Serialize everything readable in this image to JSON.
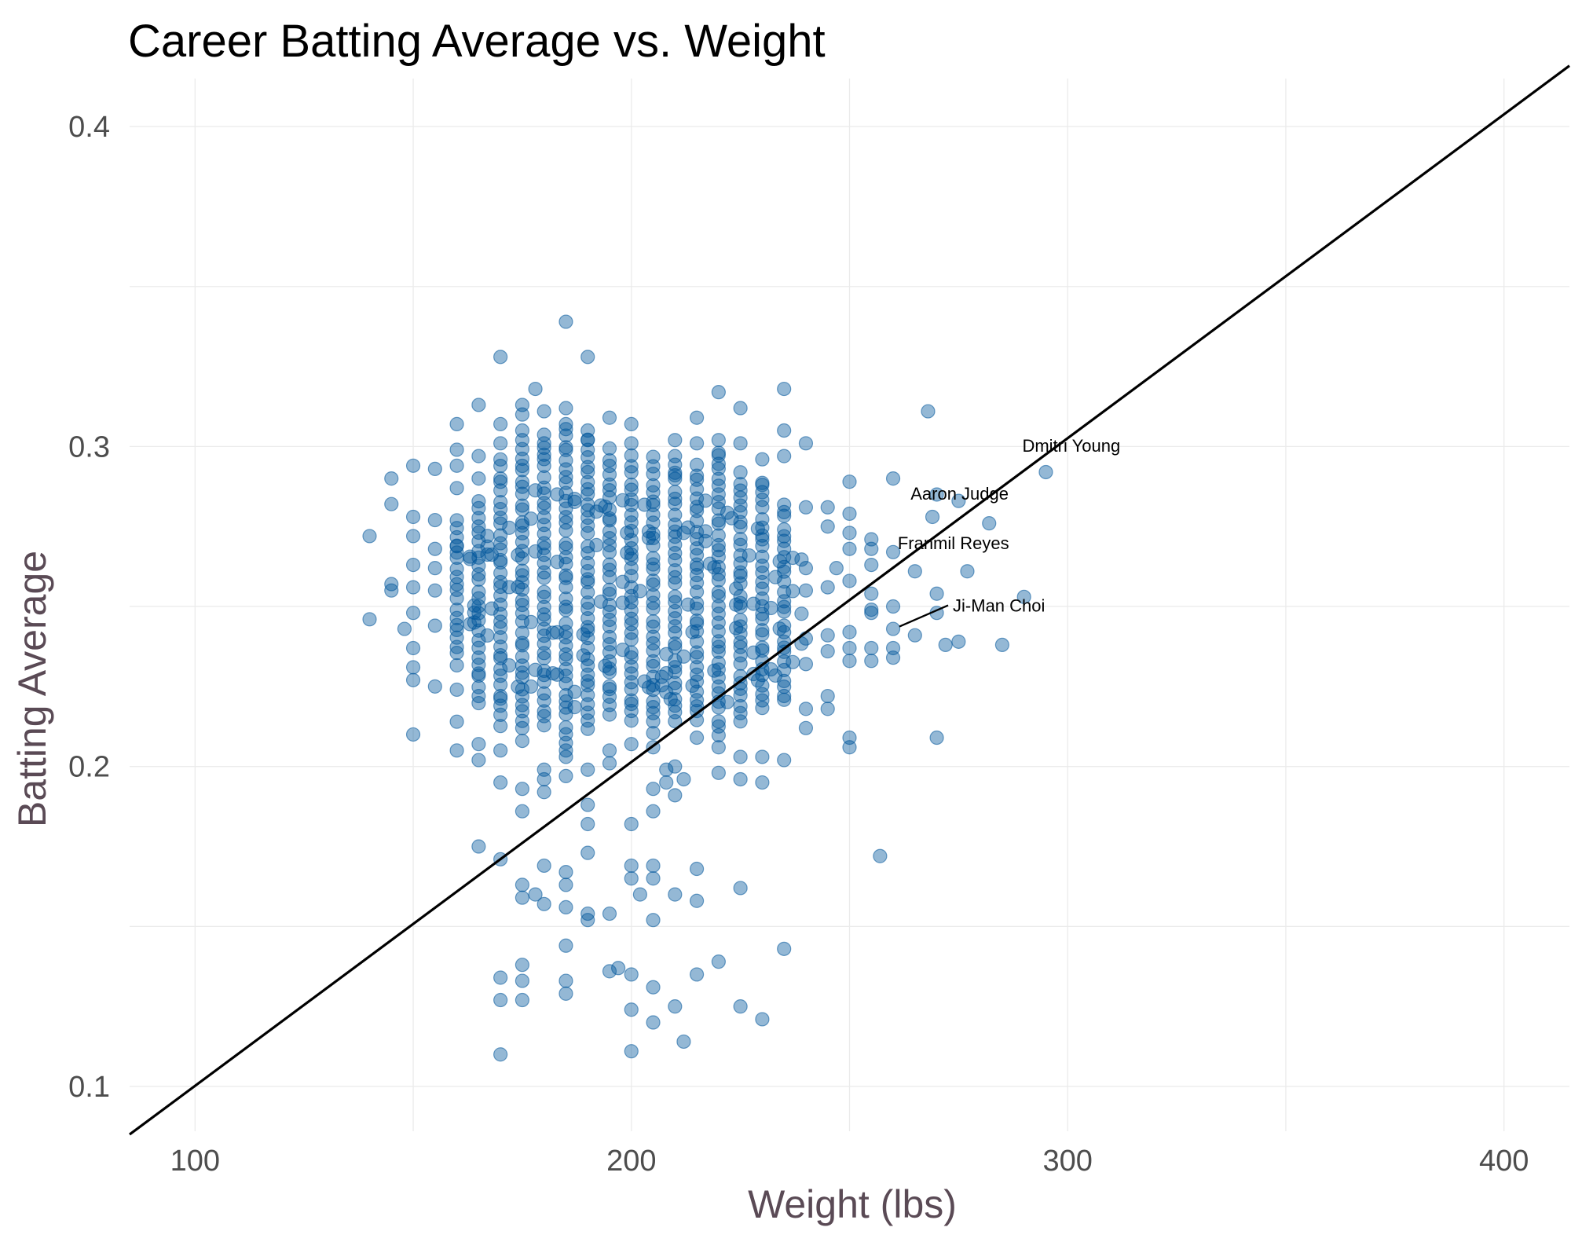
{
  "chart_data": {
    "type": "scatter",
    "title": "Career Batting Average vs. Weight",
    "xlabel": "Weight (lbs)",
    "ylabel": "Batting Average",
    "xlim": [
      85,
      415
    ],
    "ylim": [
      0.086,
      0.415
    ],
    "xticks": [
      100,
      200,
      300,
      400
    ],
    "yticks": [
      0.1,
      0.2,
      0.3,
      0.4
    ],
    "ytick_labels": [
      "0.1",
      "0.2",
      "0.3",
      "0.4"
    ],
    "grid": true,
    "colors": {
      "points": "#00569a",
      "line": "#000000"
    },
    "reference_line": [
      [
        85,
        0.085
      ],
      [
        415,
        0.419
      ]
    ],
    "points": [
      [
        140,
        0.272
      ],
      [
        140,
        0.246
      ],
      [
        145,
        0.29
      ],
      [
        145,
        0.282
      ],
      [
        145,
        0.257
      ],
      [
        145,
        0.255
      ],
      [
        148,
        0.243
      ],
      [
        150,
        0.294
      ],
      [
        150,
        0.278
      ],
      [
        150,
        0.272
      ],
      [
        150,
        0.263
      ],
      [
        150,
        0.256
      ],
      [
        150,
        0.248
      ],
      [
        150,
        0.237
      ],
      [
        150,
        0.231
      ],
      [
        150,
        0.227
      ],
      [
        150,
        0.21
      ],
      [
        155,
        0.293
      ],
      [
        155,
        0.277
      ],
      [
        155,
        0.268
      ],
      [
        155,
        0.262
      ],
      [
        155,
        0.255
      ],
      [
        155,
        0.244
      ],
      [
        155,
        0.225
      ],
      [
        160,
        0.307
      ],
      [
        160,
        0.299
      ],
      [
        160,
        0.294
      ],
      [
        160,
        0.287
      ],
      [
        160,
        0.269
      ],
      [
        160,
        0.224
      ],
      [
        160,
        0.214
      ],
      [
        160,
        0.205
      ],
      [
        165,
        0.313
      ],
      [
        165,
        0.297
      ],
      [
        165,
        0.29
      ],
      [
        165,
        0.207
      ],
      [
        165,
        0.202
      ],
      [
        165,
        0.175
      ],
      [
        170,
        0.328
      ],
      [
        170,
        0.307
      ],
      [
        170,
        0.301
      ],
      [
        170,
        0.205
      ],
      [
        170,
        0.195
      ],
      [
        170,
        0.171
      ],
      [
        170,
        0.134
      ],
      [
        170,
        0.127
      ],
      [
        170,
        0.11
      ],
      [
        175,
        0.313
      ],
      [
        175,
        0.31
      ],
      [
        175,
        0.305
      ],
      [
        175,
        0.208
      ],
      [
        175,
        0.193
      ],
      [
        175,
        0.186
      ],
      [
        175,
        0.163
      ],
      [
        175,
        0.159
      ],
      [
        175,
        0.138
      ],
      [
        175,
        0.133
      ],
      [
        175,
        0.127
      ],
      [
        178,
        0.318
      ],
      [
        178,
        0.16
      ],
      [
        180,
        0.311
      ],
      [
        180,
        0.301
      ],
      [
        180,
        0.199
      ],
      [
        180,
        0.196
      ],
      [
        180,
        0.192
      ],
      [
        180,
        0.169
      ],
      [
        180,
        0.157
      ],
      [
        185,
        0.339
      ],
      [
        185,
        0.312
      ],
      [
        185,
        0.307
      ],
      [
        185,
        0.205
      ],
      [
        185,
        0.203
      ],
      [
        185,
        0.197
      ],
      [
        185,
        0.167
      ],
      [
        185,
        0.163
      ],
      [
        185,
        0.156
      ],
      [
        185,
        0.144
      ],
      [
        185,
        0.133
      ],
      [
        185,
        0.129
      ],
      [
        190,
        0.328
      ],
      [
        190,
        0.305
      ],
      [
        190,
        0.302
      ],
      [
        190,
        0.199
      ],
      [
        190,
        0.188
      ],
      [
        190,
        0.182
      ],
      [
        190,
        0.173
      ],
      [
        190,
        0.154
      ],
      [
        190,
        0.152
      ],
      [
        195,
        0.309
      ],
      [
        195,
        0.205
      ],
      [
        195,
        0.201
      ],
      [
        195,
        0.154
      ],
      [
        195,
        0.136
      ],
      [
        197,
        0.137
      ],
      [
        200,
        0.307
      ],
      [
        200,
        0.301
      ],
      [
        200,
        0.207
      ],
      [
        200,
        0.182
      ],
      [
        200,
        0.169
      ],
      [
        200,
        0.165
      ],
      [
        200,
        0.135
      ],
      [
        200,
        0.124
      ],
      [
        200,
        0.111
      ],
      [
        202,
        0.16
      ],
      [
        205,
        0.206
      ],
      [
        205,
        0.193
      ],
      [
        205,
        0.186
      ],
      [
        205,
        0.169
      ],
      [
        205,
        0.165
      ],
      [
        205,
        0.152
      ],
      [
        205,
        0.131
      ],
      [
        205,
        0.12
      ],
      [
        208,
        0.195
      ],
      [
        208,
        0.199
      ],
      [
        210,
        0.302
      ],
      [
        210,
        0.291
      ],
      [
        210,
        0.2
      ],
      [
        210,
        0.191
      ],
      [
        210,
        0.16
      ],
      [
        210,
        0.125
      ],
      [
        212,
        0.196
      ],
      [
        212,
        0.114
      ],
      [
        215,
        0.309
      ],
      [
        215,
        0.301
      ],
      [
        215,
        0.209
      ],
      [
        215,
        0.168
      ],
      [
        215,
        0.158
      ],
      [
        215,
        0.135
      ],
      [
        220,
        0.317
      ],
      [
        220,
        0.302
      ],
      [
        220,
        0.298
      ],
      [
        220,
        0.206
      ],
      [
        220,
        0.198
      ],
      [
        220,
        0.139
      ],
      [
        225,
        0.312
      ],
      [
        225,
        0.301
      ],
      [
        225,
        0.203
      ],
      [
        225,
        0.196
      ],
      [
        225,
        0.162
      ],
      [
        225,
        0.125
      ],
      [
        230,
        0.296
      ],
      [
        230,
        0.288
      ],
      [
        230,
        0.203
      ],
      [
        230,
        0.195
      ],
      [
        230,
        0.121
      ],
      [
        235,
        0.318
      ],
      [
        235,
        0.305
      ],
      [
        235,
        0.297
      ],
      [
        235,
        0.202
      ],
      [
        235,
        0.143
      ],
      [
        240,
        0.301
      ],
      [
        240,
        0.281
      ],
      [
        240,
        0.262
      ],
      [
        240,
        0.255
      ],
      [
        240,
        0.24
      ],
      [
        240,
        0.232
      ],
      [
        240,
        0.218
      ],
      [
        240,
        0.212
      ],
      [
        245,
        0.281
      ],
      [
        245,
        0.275
      ],
      [
        245,
        0.256
      ],
      [
        245,
        0.241
      ],
      [
        245,
        0.236
      ],
      [
        245,
        0.222
      ],
      [
        245,
        0.218
      ],
      [
        247,
        0.262
      ],
      [
        250,
        0.289
      ],
      [
        250,
        0.279
      ],
      [
        250,
        0.273
      ],
      [
        250,
        0.268
      ],
      [
        250,
        0.258
      ],
      [
        250,
        0.242
      ],
      [
        250,
        0.237
      ],
      [
        250,
        0.233
      ],
      [
        250,
        0.209
      ],
      [
        250,
        0.206
      ],
      [
        255,
        0.271
      ],
      [
        255,
        0.268
      ],
      [
        255,
        0.263
      ],
      [
        255,
        0.254
      ],
      [
        255,
        0.249
      ],
      [
        255,
        0.248
      ],
      [
        255,
        0.237
      ],
      [
        255,
        0.233
      ],
      [
        257,
        0.172
      ],
      [
        260,
        0.29
      ],
      [
        260,
        0.267
      ],
      [
        260,
        0.25
      ],
      [
        260,
        0.243
      ],
      [
        260,
        0.237
      ],
      [
        260,
        0.234
      ],
      [
        265,
        0.261
      ],
      [
        265,
        0.241
      ],
      [
        268,
        0.311
      ],
      [
        269,
        0.278
      ],
      [
        270,
        0.285
      ],
      [
        270,
        0.254
      ],
      [
        270,
        0.248
      ],
      [
        270,
        0.209
      ],
      [
        272,
        0.238
      ],
      [
        275,
        0.283
      ],
      [
        275,
        0.239
      ],
      [
        277,
        0.261
      ],
      [
        282,
        0.276
      ],
      [
        285,
        0.238
      ],
      [
        290,
        0.253
      ],
      [
        295,
        0.292
      ]
    ],
    "annotations": [
      {
        "label": "Dmitri Young",
        "x": 295,
        "y": 0.292
      },
      {
        "label": "Aaron Judge",
        "x": 282,
        "y": 0.276
      },
      {
        "label": "Franmil Reyes",
        "x": 265,
        "y": 0.261
      },
      {
        "label": "Ji-Man Choi",
        "x": 260,
        "y": 0.243
      }
    ],
    "dense_columns": [
      [
        160,
        0.232,
        0.279
      ],
      [
        165,
        0.22,
        0.285
      ],
      [
        170,
        0.213,
        0.296
      ],
      [
        175,
        0.212,
        0.303
      ],
      [
        180,
        0.213,
        0.305
      ],
      [
        185,
        0.208,
        0.306
      ],
      [
        190,
        0.212,
        0.303
      ],
      [
        195,
        0.216,
        0.3
      ],
      [
        200,
        0.214,
        0.299
      ],
      [
        205,
        0.211,
        0.298
      ],
      [
        210,
        0.214,
        0.297
      ],
      [
        215,
        0.214,
        0.295
      ],
      [
        220,
        0.21,
        0.3
      ],
      [
        225,
        0.214,
        0.292
      ],
      [
        230,
        0.218,
        0.29
      ],
      [
        235,
        0.22,
        0.285
      ]
    ]
  }
}
